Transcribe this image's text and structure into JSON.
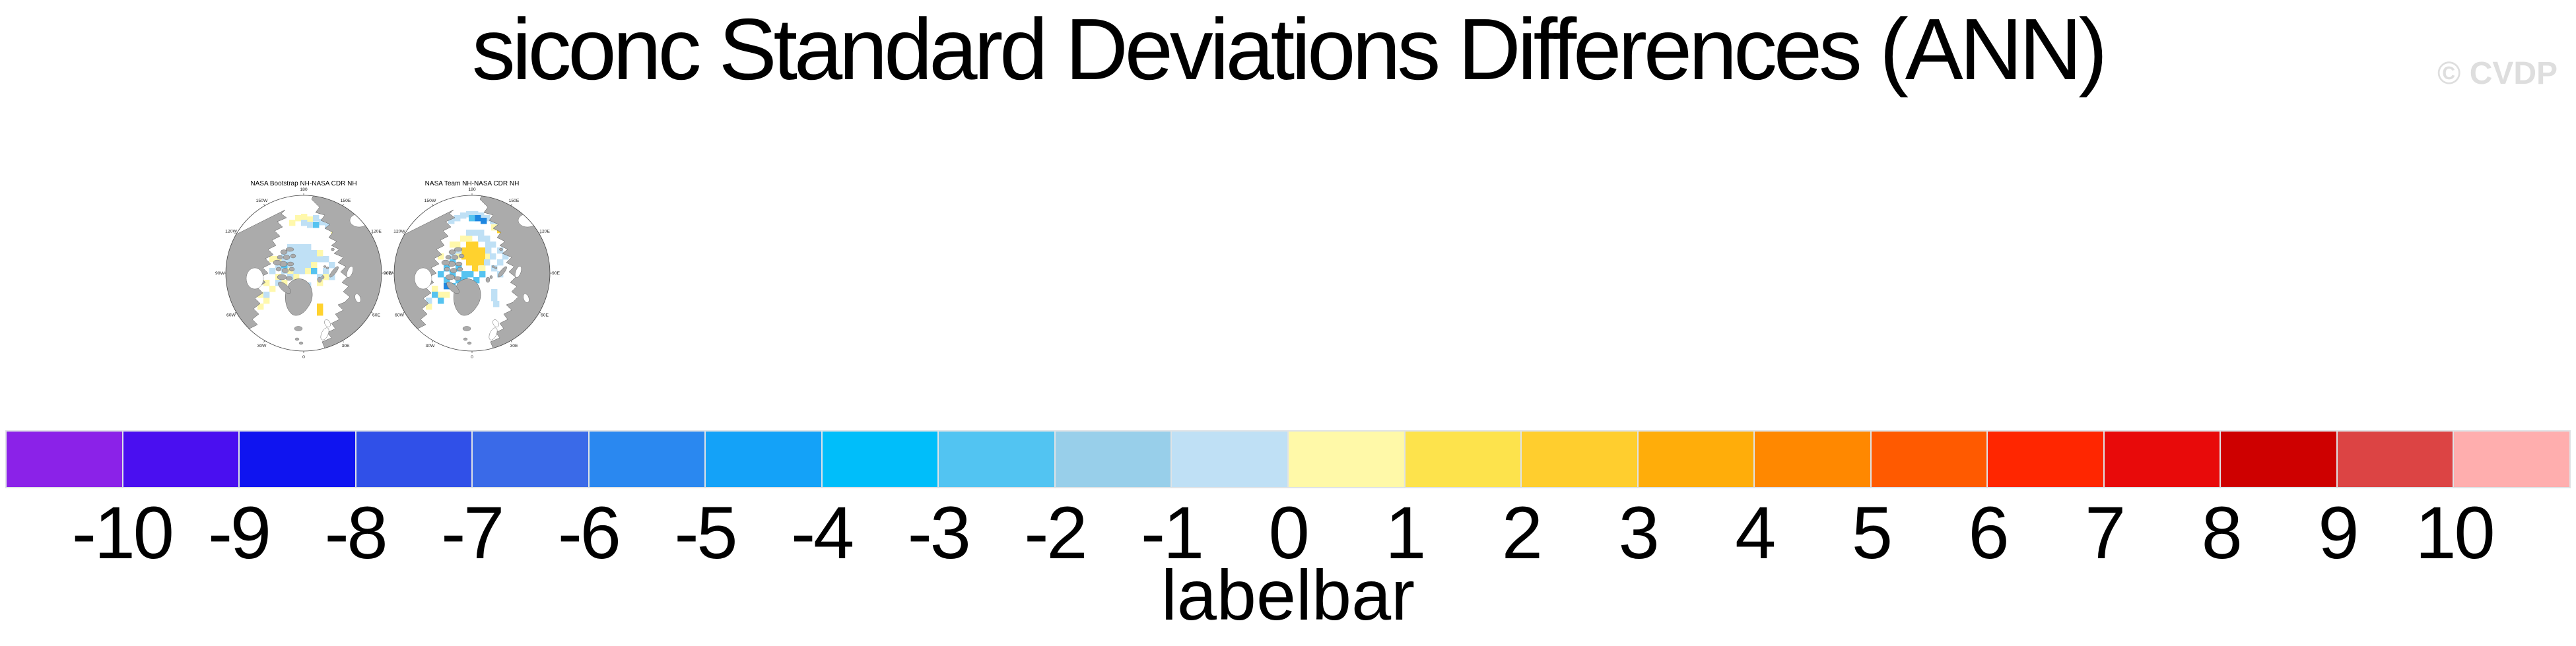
{
  "page": {
    "title": "siconc Standard Deviations Differences (ANN)",
    "watermark": "© CVDP"
  },
  "map_style": {
    "land": "#ababab",
    "coast": "#555555",
    "ocean": "#ffffff",
    "circle_outline": "#444444"
  },
  "patch_colors": {
    "PB": "#bfe0f5",
    "SB": "#55c3f0",
    "DB": "#1e86e0",
    "PY": "#fff8ac",
    "GD": "#ffd22e"
  },
  "panels": [
    {
      "title": "NASA Bootstrap NH-NASA CDR NH",
      "lon_labels": [
        "180",
        "150E",
        "120E",
        "90E",
        "60E",
        "30E",
        "0",
        "30W",
        "60W",
        "90W",
        "120W",
        "150W"
      ],
      "patches": [
        [
          113,
          64,
          "PY"
        ],
        [
          122,
          62,
          "PY"
        ],
        [
          131,
          66,
          "PY"
        ],
        [
          104,
          71,
          "PY"
        ],
        [
          167,
          84,
          "PY"
        ],
        [
          140,
          64,
          "PB"
        ],
        [
          149,
          70,
          "PB"
        ],
        [
          122,
          71,
          "PB"
        ],
        [
          131,
          74,
          "PB"
        ],
        [
          158,
          76,
          "PB"
        ],
        [
          140,
          74,
          "SB"
        ],
        [
          101,
          108,
          "PB"
        ],
        [
          110,
          108,
          "PB"
        ],
        [
          119,
          108,
          "PB"
        ],
        [
          128,
          108,
          "PB"
        ],
        [
          92,
          117,
          "PB"
        ],
        [
          101,
          117,
          "PB"
        ],
        [
          110,
          117,
          "PB"
        ],
        [
          119,
          117,
          "PB"
        ],
        [
          128,
          117,
          "PB"
        ],
        [
          137,
          117,
          "PB"
        ],
        [
          92,
          126,
          "PB"
        ],
        [
          101,
          126,
          "PB"
        ],
        [
          110,
          126,
          "PB"
        ],
        [
          119,
          126,
          "PB"
        ],
        [
          128,
          126,
          "PB"
        ],
        [
          137,
          126,
          "PB"
        ],
        [
          146,
          126,
          "PB"
        ],
        [
          101,
          135,
          "PB"
        ],
        [
          110,
          135,
          "PB"
        ],
        [
          119,
          135,
          "PB"
        ],
        [
          128,
          135,
          "PB"
        ],
        [
          110,
          144,
          "PB"
        ],
        [
          119,
          144,
          "PB"
        ],
        [
          83,
          126,
          "PY"
        ],
        [
          92,
          135,
          "PY"
        ],
        [
          137,
          135,
          "PY"
        ],
        [
          146,
          117,
          "PY"
        ],
        [
          128,
          144,
          "PY"
        ],
        [
          101,
          144,
          "PY"
        ],
        [
          110,
          153,
          "PY"
        ],
        [
          91,
          137,
          "DB"
        ],
        [
          137,
          144,
          "SB"
        ],
        [
          155,
          126,
          "PB"
        ],
        [
          164,
          135,
          "PB"
        ],
        [
          155,
          144,
          "PB"
        ],
        [
          146,
          153,
          "PB"
        ],
        [
          164,
          153,
          "PB"
        ],
        [
          155,
          153,
          "PY"
        ],
        [
          146,
          162,
          "PY"
        ],
        [
          146,
          198,
          "GD"
        ],
        [
          146,
          207,
          "GD"
        ],
        [
          74,
          126,
          "PY"
        ],
        [
          83,
          153,
          "PY"
        ],
        [
          65,
          162,
          "PY"
        ],
        [
          74,
          171,
          "PY"
        ],
        [
          92,
          162,
          "PY"
        ],
        [
          56,
          180,
          "PY"
        ],
        [
          65,
          189,
          "PY"
        ],
        [
          56,
          198,
          "PY"
        ],
        [
          83,
          135,
          "PB"
        ],
        [
          74,
          144,
          "PB"
        ],
        [
          92,
          144,
          "PB"
        ],
        [
          83,
          162,
          "PB"
        ],
        [
          101,
          153,
          "PB"
        ],
        [
          65,
          180,
          "PB"
        ],
        [
          92,
          135,
          "SB"
        ],
        [
          128,
          166,
          "PB"
        ],
        [
          122,
          175,
          "PB"
        ],
        [
          113,
          180,
          "PY"
        ]
      ]
    },
    {
      "title": "NASA Team NH-NASA CDR NH",
      "lon_labels": [
        "180",
        "150E",
        "120E",
        "90E",
        "60E",
        "30E",
        "0",
        "30W",
        "60W",
        "90W",
        "120W",
        "150W"
      ],
      "patches": [
        [
          108,
          60,
          "PB"
        ],
        [
          117,
          58,
          "PB"
        ],
        [
          126,
          58,
          "PB"
        ],
        [
          135,
          60,
          "PB"
        ],
        [
          144,
          64,
          "PB"
        ],
        [
          99,
          64,
          "PB"
        ],
        [
          153,
          68,
          "PB"
        ],
        [
          162,
          72,
          "PB"
        ],
        [
          90,
          68,
          "PB"
        ],
        [
          130,
          64,
          "DB"
        ],
        [
          139,
          68,
          "DB"
        ],
        [
          121,
          64,
          "SB"
        ],
        [
          164,
          82,
          "GD"
        ],
        [
          155,
          78,
          "PY"
        ],
        [
          117,
          104,
          "GD"
        ],
        [
          126,
          104,
          "GD"
        ],
        [
          110,
          113,
          "GD"
        ],
        [
          119,
          113,
          "GD"
        ],
        [
          128,
          113,
          "GD"
        ],
        [
          137,
          113,
          "GD"
        ],
        [
          110,
          122,
          "GD"
        ],
        [
          119,
          122,
          "GD"
        ],
        [
          128,
          122,
          "GD"
        ],
        [
          137,
          122,
          "GD"
        ],
        [
          117,
          131,
          "GD"
        ],
        [
          126,
          131,
          "GD"
        ],
        [
          135,
          131,
          "GD"
        ],
        [
          126,
          140,
          "GD"
        ],
        [
          108,
          95,
          "PY"
        ],
        [
          99,
          104,
          "PY"
        ],
        [
          146,
          122,
          "PY"
        ],
        [
          137,
          140,
          "PY"
        ],
        [
          99,
          122,
          "PY"
        ],
        [
          117,
          95,
          "PY"
        ],
        [
          126,
          86,
          "PB"
        ],
        [
          135,
          86,
          "PB"
        ],
        [
          117,
          86,
          "PB"
        ],
        [
          144,
          95,
          "PB"
        ],
        [
          135,
          95,
          "PB"
        ],
        [
          153,
          104,
          "PB"
        ],
        [
          146,
          104,
          "PB"
        ],
        [
          144,
          131,
          "PB"
        ],
        [
          153,
          122,
          "PB"
        ],
        [
          146,
          113,
          "PB"
        ],
        [
          101,
          113,
          "PB"
        ],
        [
          92,
          122,
          "PB"
        ],
        [
          92,
          131,
          "SB"
        ],
        [
          101,
          140,
          "SB"
        ],
        [
          110,
          149,
          "SB"
        ],
        [
          119,
          149,
          "SB"
        ],
        [
          92,
          149,
          "SB"
        ],
        [
          83,
          140,
          "SB"
        ],
        [
          110,
          158,
          "SB"
        ],
        [
          128,
          158,
          "SB"
        ],
        [
          137,
          149,
          "SB"
        ],
        [
          101,
          158,
          "SB"
        ],
        [
          83,
          158,
          "SB"
        ],
        [
          74,
          149,
          "SB"
        ],
        [
          119,
          167,
          "SB"
        ],
        [
          92,
          167,
          "SB"
        ],
        [
          83,
          167,
          "DB"
        ],
        [
          74,
          122,
          "PY"
        ],
        [
          65,
          171,
          "PY"
        ],
        [
          83,
          180,
          "PY"
        ],
        [
          92,
          104,
          "PY"
        ],
        [
          56,
          198,
          "PY"
        ],
        [
          74,
          180,
          "PY"
        ],
        [
          164,
          113,
          "PB"
        ],
        [
          172,
          122,
          "PB"
        ],
        [
          164,
          131,
          "PB"
        ],
        [
          155,
          140,
          "PB"
        ],
        [
          164,
          149,
          "PB"
        ],
        [
          155,
          176,
          "PB"
        ],
        [
          155,
          185,
          "PB"
        ],
        [
          158,
          194,
          "PB"
        ],
        [
          65,
          180,
          "SB"
        ],
        [
          74,
          189,
          "SB"
        ],
        [
          56,
          189,
          "PB"
        ]
      ]
    }
  ],
  "labelbar": {
    "caption": "labelbar",
    "ticks": [
      "-10",
      "-9",
      "-8",
      "-7",
      "-6",
      "-5",
      "-4",
      "-3",
      "-2",
      "-1",
      "0",
      "1",
      "2",
      "3",
      "4",
      "5",
      "6",
      "7",
      "8",
      "9",
      "10"
    ],
    "colors": [
      "#8b22e8",
      "#4a0ff0",
      "#0f14f0",
      "#3050e8",
      "#3a6ae8",
      "#2a88f0",
      "#14a2f8",
      "#00befa",
      "#52c4f2",
      "#98cfea",
      "#bfe0f5",
      "#fff9a8",
      "#fde34c",
      "#ffce2e",
      "#ffad0a",
      "#ff8800",
      "#ff5a00",
      "#ff2600",
      "#e80a0a",
      "#ce0000",
      "#dc4444",
      "#ffaeae"
    ]
  },
  "chart_data": {
    "type": "map",
    "title": "siconc Standard Deviations Differences (ANN)",
    "variable": "siconc",
    "season": "ANN",
    "panels": [
      "NASA Bootstrap NH-NASA CDR NH",
      "NASA Team NH-NASA CDR NH"
    ],
    "projection_labels": [
      "180",
      "150E",
      "120E",
      "90E",
      "60E",
      "30E",
      "0",
      "30W",
      "60W",
      "90W",
      "120W",
      "150W"
    ],
    "colorbar_label": "labelbar",
    "levels": [
      -10,
      -9,
      -8,
      -7,
      -6,
      -5,
      -4,
      -3,
      -2,
      -1,
      0,
      1,
      2,
      3,
      4,
      5,
      6,
      7,
      8,
      9,
      10
    ],
    "colors": [
      "#8b22e8",
      "#4a0ff0",
      "#0f14f0",
      "#3050e8",
      "#3a6ae8",
      "#2a88f0",
      "#14a2f8",
      "#00befa",
      "#52c4f2",
      "#98cfea",
      "#bfe0f5",
      "#fff9a8",
      "#fde34c",
      "#ffce2e",
      "#ffad0a",
      "#ff8800",
      "#ff5a00",
      "#ff2600",
      "#e80a0a",
      "#ce0000",
      "#dc4444",
      "#ffaeae"
    ],
    "legend_position": "bottom"
  }
}
